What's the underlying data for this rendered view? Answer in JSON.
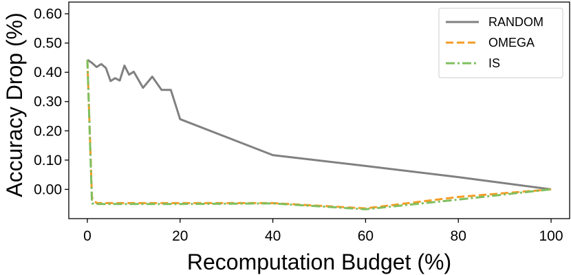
{
  "chart_data": {
    "type": "line",
    "title": "",
    "xlabel": "Recomputation Budget (%)",
    "ylabel": "Accuracy Drop (%)",
    "xlim": [
      -4,
      104
    ],
    "ylim": [
      -0.1,
      0.64
    ],
    "xticks": [
      0,
      20,
      40,
      60,
      80,
      100
    ],
    "xtick_labels": [
      "0",
      "20",
      "40",
      "60",
      "80",
      "100"
    ],
    "yticks": [
      0.0,
      0.1,
      0.2,
      0.3,
      0.4,
      0.5,
      0.6
    ],
    "ytick_labels": [
      "0.00",
      "0.10",
      "0.20",
      "0.30",
      "0.40",
      "0.50",
      "0.60"
    ],
    "grid": false,
    "legend_position": "top-right",
    "series": [
      {
        "name": "RANDOM",
        "color": "#808080",
        "dash": "solid",
        "x": [
          0,
          1,
          2,
          3,
          4,
          5,
          6,
          7,
          8,
          9,
          10,
          12,
          14,
          16,
          18,
          20,
          40,
          60,
          80,
          100
        ],
        "y": [
          0.443,
          0.432,
          0.418,
          0.428,
          0.415,
          0.37,
          0.38,
          0.372,
          0.423,
          0.392,
          0.402,
          0.347,
          0.385,
          0.34,
          0.34,
          0.24,
          0.117,
          0.08,
          0.042,
          0.0
        ]
      },
      {
        "name": "OMEGA",
        "color": "#f39c25",
        "dash": "dashed",
        "x": [
          0,
          1,
          2,
          20,
          40,
          60,
          80,
          100
        ],
        "y": [
          0.443,
          -0.028,
          -0.047,
          -0.047,
          -0.047,
          -0.065,
          -0.026,
          0.0
        ]
      },
      {
        "name": "IS",
        "color": "#7fbf5f",
        "dash": "dashdot",
        "x": [
          0,
          1,
          2,
          20,
          40,
          60,
          80,
          100
        ],
        "y": [
          0.443,
          -0.048,
          -0.05,
          -0.05,
          -0.048,
          -0.068,
          -0.035,
          0.0
        ]
      }
    ]
  }
}
